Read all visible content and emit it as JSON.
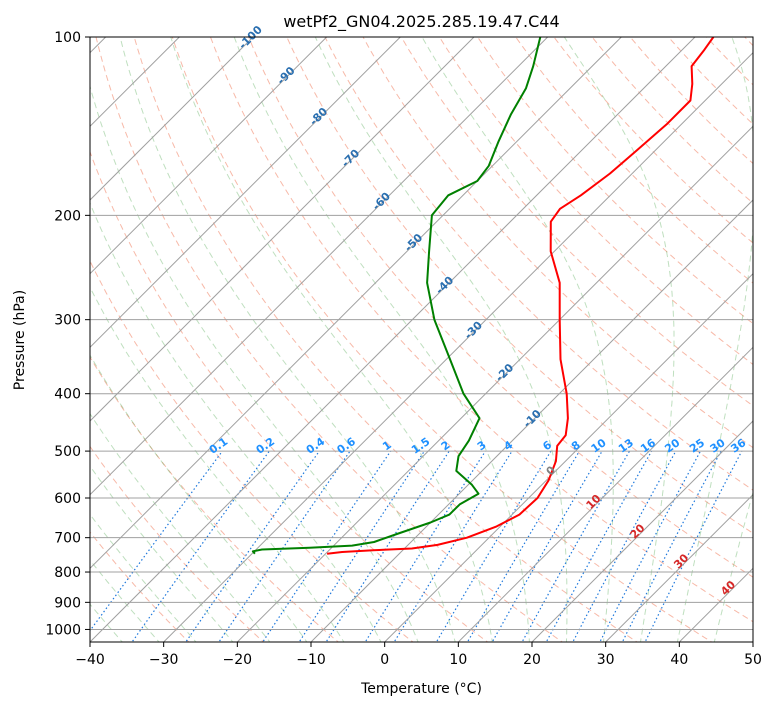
{
  "chart_data": {
    "type": "line",
    "title": "wetPf2_GN04.2025.285.19.47.C44",
    "xlabel": "Temperature (°C)",
    "ylabel": "Pressure (hPa)",
    "xlim": [
      -40,
      50
    ],
    "ylim": [
      1050,
      100
    ],
    "x_ticks": [
      -40,
      -30,
      -20,
      -10,
      0,
      10,
      20,
      30,
      40,
      50
    ],
    "x_tick_labels": [
      "−40",
      "−30",
      "−20",
      "−10",
      "0",
      "10",
      "20",
      "30",
      "40",
      "50"
    ],
    "y_ticks": [
      100,
      200,
      300,
      400,
      500,
      600,
      700,
      800,
      900,
      1000
    ],
    "y_tick_labels": [
      "100",
      "200",
      "300",
      "400",
      "500",
      "600",
      "700",
      "800",
      "900",
      "1000"
    ],
    "grid": true,
    "isotherm_labels": [
      "-100",
      "-90",
      "-80",
      "-70",
      "-60",
      "-50",
      "-40",
      "-30",
      "-20",
      "-10"
    ],
    "isotherm_values": [
      -100,
      -90,
      -80,
      -70,
      -60,
      -50,
      -40,
      -30,
      -20,
      -10
    ],
    "mixing_ratio_labels": [
      "0.1",
      "0.2",
      "0.4",
      "0.6",
      "1",
      "1.5",
      "2",
      "3",
      "4",
      "6",
      "8",
      "10",
      "13",
      "16",
      "20",
      "25",
      "30",
      "36"
    ],
    "mixing_ratio_values": [
      0.1,
      0.2,
      0.4,
      0.6,
      1,
      1.5,
      2,
      3,
      4,
      6,
      8,
      10,
      13,
      16,
      20,
      25,
      30,
      36
    ],
    "moist_adiabat_labels": [
      "0",
      "10",
      "20",
      "30",
      "40"
    ],
    "moist_adiabat_values": [
      0,
      10,
      20,
      30,
      40
    ],
    "series": [
      {
        "name": "Temperature",
        "color": "#ff0000",
        "points": [
          {
            "p": 745,
            "t": -19.8
          },
          {
            "p": 740,
            "t": -18
          },
          {
            "p": 735,
            "t": -14
          },
          {
            "p": 730,
            "t": -9
          },
          {
            "p": 720,
            "t": -6
          },
          {
            "p": 700,
            "t": -3
          },
          {
            "p": 670,
            "t": -0.5
          },
          {
            "p": 640,
            "t": 1
          },
          {
            "p": 600,
            "t": 1.2
          },
          {
            "p": 560,
            "t": 0.3
          },
          {
            "p": 520,
            "t": -1.3
          },
          {
            "p": 490,
            "t": -3.2
          },
          {
            "p": 470,
            "t": -3.5
          },
          {
            "p": 440,
            "t": -5.5
          },
          {
            "p": 400,
            "t": -9
          },
          {
            "p": 350,
            "t": -14.5
          },
          {
            "p": 300,
            "t": -20
          },
          {
            "p": 260,
            "t": -25
          },
          {
            "p": 230,
            "t": -30.5
          },
          {
            "p": 205,
            "t": -34.5
          },
          {
            "p": 195,
            "t": -35
          },
          {
            "p": 185,
            "t": -34
          },
          {
            "p": 170,
            "t": -33
          },
          {
            "p": 155,
            "t": -32.5
          },
          {
            "p": 140,
            "t": -32
          },
          {
            "p": 128,
            "t": -32
          },
          {
            "p": 120,
            "t": -34
          },
          {
            "p": 112,
            "t": -36.5
          },
          {
            "p": 105,
            "t": -37
          },
          {
            "p": 100,
            "t": -37.5
          }
        ]
      },
      {
        "name": "Dewpoint",
        "color": "#008000",
        "points": [
          {
            "p": 745,
            "t": -29.6
          },
          {
            "p": 738,
            "t": -30.2
          },
          {
            "p": 733,
            "t": -29.2
          },
          {
            "p": 728,
            "t": -23
          },
          {
            "p": 722,
            "t": -17.5
          },
          {
            "p": 712,
            "t": -15
          },
          {
            "p": 690,
            "t": -13
          },
          {
            "p": 660,
            "t": -10
          },
          {
            "p": 640,
            "t": -8.5
          },
          {
            "p": 615,
            "t": -8.5
          },
          {
            "p": 590,
            "t": -7.4
          },
          {
            "p": 570,
            "t": -9.5
          },
          {
            "p": 540,
            "t": -13.5
          },
          {
            "p": 510,
            "t": -15.2
          },
          {
            "p": 480,
            "t": -15.9
          },
          {
            "p": 440,
            "t": -17.5
          },
          {
            "p": 400,
            "t": -23
          },
          {
            "p": 350,
            "t": -29.5
          },
          {
            "p": 300,
            "t": -37
          },
          {
            "p": 260,
            "t": -43
          },
          {
            "p": 230,
            "t": -47
          },
          {
            "p": 200,
            "t": -51.5
          },
          {
            "p": 185,
            "t": -52
          },
          {
            "p": 175,
            "t": -50
          },
          {
            "p": 165,
            "t": -50.5
          },
          {
            "p": 150,
            "t": -52.5
          },
          {
            "p": 135,
            "t": -54.5
          },
          {
            "p": 122,
            "t": -56
          },
          {
            "p": 112,
            "t": -58
          },
          {
            "p": 100,
            "t": -61
          }
        ]
      }
    ]
  }
}
